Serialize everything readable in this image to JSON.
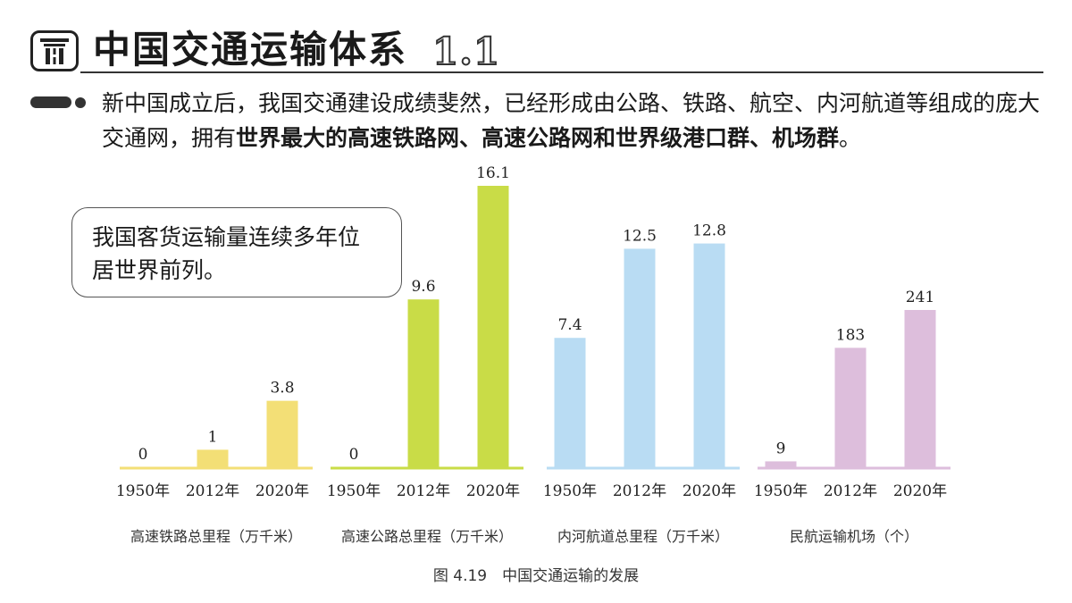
{
  "header": {
    "title": "中国交通运输体系",
    "section_number": "1.1",
    "logo_icon": "highway-icon"
  },
  "intro": {
    "text_plain": "新中国成立后，我国交通建设成绩斐然，已经形成由公路、铁路、航空、内河航道等组成的庞大交通网，拥有",
    "text_bold": "世界最大的高速铁路网、高速公路网和世界级港口群、机场群",
    "text_end": "。"
  },
  "callout": {
    "text": "我国客货运输量连续多年位居世界前列。"
  },
  "chart_data": [
    {
      "type": "bar",
      "title": "高速铁路总里程（万千米）",
      "categories": [
        "1950年",
        "2012年",
        "2020年"
      ],
      "values": [
        0,
        1,
        3.8
      ],
      "labels": [
        "0",
        "1",
        "3.8"
      ],
      "color": "#f3df76"
    },
    {
      "type": "bar",
      "title": "高速公路总里程（万千米）",
      "categories": [
        "1950年",
        "2012年",
        "2020年"
      ],
      "values": [
        0,
        9.6,
        16.1
      ],
      "labels": [
        "0",
        "9.6",
        "16.1"
      ],
      "color": "#c9dc47"
    },
    {
      "type": "bar",
      "title": "内河航道总里程（万千米）",
      "categories": [
        "1950年",
        "2012年",
        "2020年"
      ],
      "values": [
        7.4,
        12.5,
        12.8
      ],
      "labels": [
        "7.4",
        "12.5",
        "12.8"
      ],
      "color": "#b9dcf3"
    },
    {
      "type": "bar",
      "title": "民航运输机场（个）",
      "categories": [
        "1950年",
        "2012年",
        "2020年"
      ],
      "values": [
        9,
        183,
        241
      ],
      "labels": [
        "9",
        "183",
        "241"
      ],
      "color": "#ddbedc"
    }
  ],
  "figure_caption": "图 4.19　中国交通运输的发展"
}
